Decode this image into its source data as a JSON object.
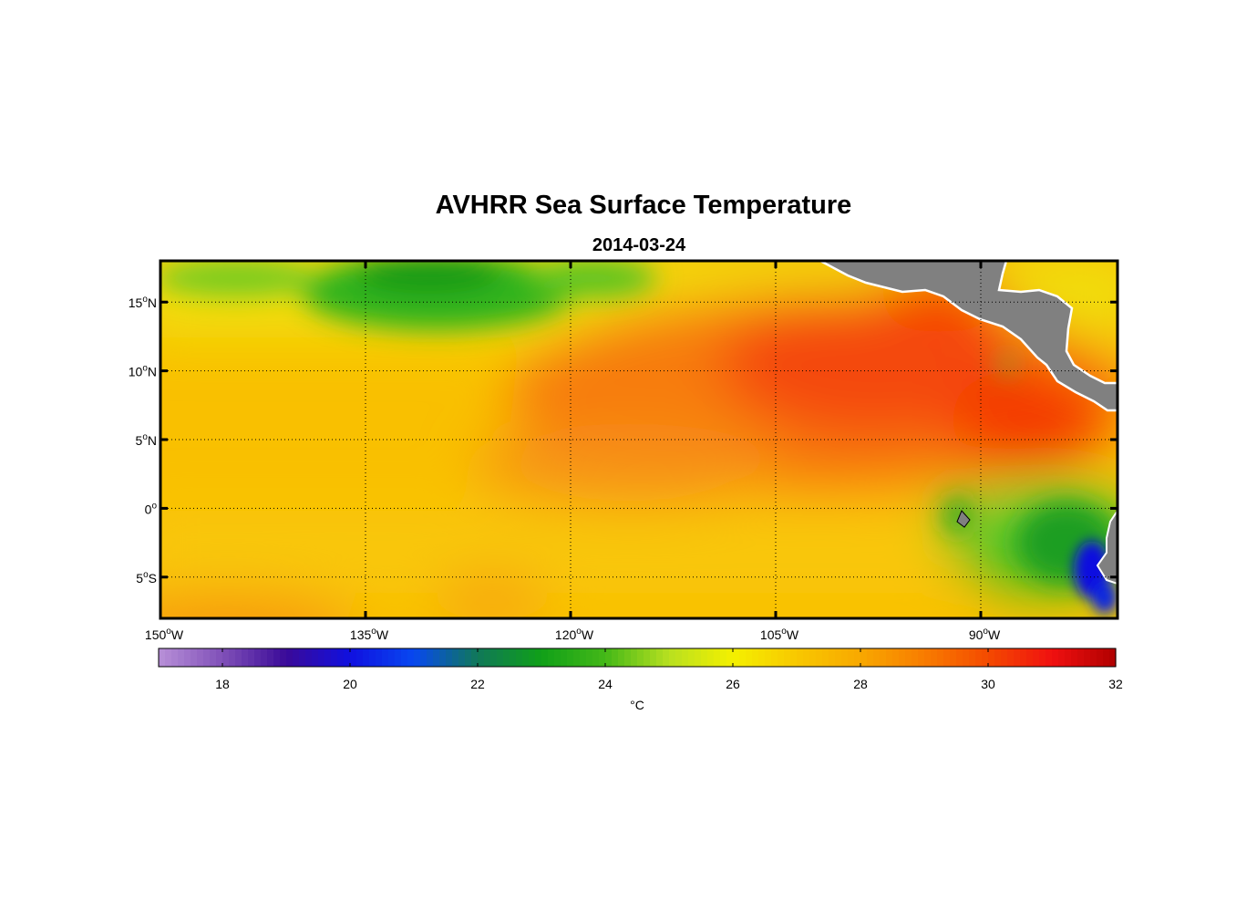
{
  "map": {
    "title": "AVHRR Sea Surface Temperature",
    "subtitle": "2014-03-24",
    "lat_labels": [
      {
        "lat": 15,
        "value": "15",
        "hemi": "N"
      },
      {
        "lat": 10,
        "value": "10",
        "hemi": "N"
      },
      {
        "lat": 5,
        "value": "5",
        "hemi": "N"
      },
      {
        "lat": 0,
        "value": "0",
        "hemi": ""
      },
      {
        "lat": -5,
        "value": "5",
        "hemi": "S"
      }
    ],
    "lon_labels": [
      {
        "lon": -150,
        "value": "150",
        "hemi": "W"
      },
      {
        "lon": -135,
        "value": "135",
        "hemi": "W"
      },
      {
        "lon": -120,
        "value": "120",
        "hemi": "W"
      },
      {
        "lon": -105,
        "value": "105",
        "hemi": "W"
      },
      {
        "lon": -90,
        "value": "90",
        "hemi": "W"
      }
    ],
    "degree_symbol": "o",
    "extent": {
      "lon_min": -150,
      "lon_max": -80,
      "lat_min": -8,
      "lat_max": 18
    },
    "colorbar": {
      "ticks": [
        "18",
        "20",
        "22",
        "24",
        "26",
        "28",
        "30",
        "32"
      ],
      "range": [
        17,
        32
      ],
      "unit": "°C"
    },
    "colors": {
      "land": "#808080",
      "cold": "#1010e0",
      "green": "#22a51c",
      "yellow": "#f4f000",
      "orange": "#f9a800",
      "red": "#f43000"
    }
  }
}
